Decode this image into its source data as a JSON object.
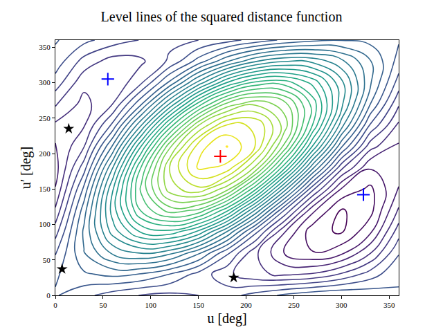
{
  "chart_data": {
    "type": "contour",
    "title": "Level lines of the squared distance function",
    "xlabel": "u [deg]",
    "ylabel": "u′ [deg]",
    "xlim": [
      0,
      360
    ],
    "ylim": [
      0,
      360
    ],
    "xticks": [
      0,
      50,
      100,
      150,
      200,
      250,
      300,
      350
    ],
    "yticks": [
      0,
      50,
      100,
      150,
      200,
      250,
      300,
      350
    ],
    "grid": false,
    "color": "viridis",
    "x": [
      0,
      30,
      60,
      90,
      120,
      150,
      180,
      210,
      240,
      270,
      300,
      330,
      360
    ],
    "y": [
      0,
      30,
      60,
      90,
      120,
      150,
      180,
      210,
      240,
      270,
      300,
      330,
      360
    ],
    "z": [
      [
        1.82,
        1.66,
        1.5,
        1.39,
        1.35,
        1.4,
        1.52,
        1.68,
        1.84,
        1.95,
        1.99,
        1.94,
        1.82
      ],
      [
        1.77,
        1.97,
        2.06,
        1.99,
        1.8,
        1.53,
        1.25,
        1.04,
        0.96,
        1.02,
        1.22,
        1.49,
        1.77
      ],
      [
        1.58,
        2.19,
        2.64,
        2.82,
        2.67,
        2.25,
        1.65,
        1.04,
        0.59,
        0.41,
        0.55,
        0.98,
        1.58
      ],
      [
        1.31,
        2.24,
        3.09,
        3.64,
        3.74,
        3.36,
        2.6,
        1.67,
        0.82,
        0.27,
        0.17,
        0.55,
        1.31
      ],
      [
        1.03,
        2.11,
        3.29,
        4.23,
        4.7,
        4.56,
        3.86,
        2.77,
        1.6,
        0.65,
        0.18,
        0.32,
        1.03
      ],
      [
        0.81,
        1.85,
        3.18,
        4.45,
        5.31,
        5.55,
        5.08,
        4.04,
        2.71,
        1.45,
        0.58,
        0.35,
        0.81
      ],
      [
        0.72,
        1.51,
        2.79,
        4.22,
        5.41,
        6.04,
        5.94,
        5.15,
        3.87,
        2.44,
        1.25,
        0.62,
        0.72
      ],
      [
        0.77,
        1.19,
        2.23,
        3.61,
        4.96,
        5.91,
        6.21,
        5.79,
        4.75,
        3.37,
        2.03,
        1.08,
        0.77
      ],
      [
        0.96,
        0.98,
        1.65,
        2.79,
        4.08,
        5.19,
        5.82,
        5.79,
        5.12,
        3.99,
        2.69,
        1.58,
        0.96
      ],
      [
        1.23,
        0.93,
        1.2,
        1.97,
        3.02,
        4.08,
        4.86,
        5.16,
        4.89,
        4.12,
        3.07,
        2.01,
        1.23
      ],
      [
        1.51,
        1.06,
        1.01,
        1.37,
        2.05,
        2.87,
        3.61,
        4.06,
        4.11,
        3.74,
        3.06,
        2.24,
        1.51
      ],
      [
        1.72,
        1.32,
        1.11,
        1.16,
        1.44,
        1.89,
        2.38,
        2.79,
        2.99,
        2.95,
        2.66,
        2.22,
        1.72
      ],
      [
        1.82,
        1.66,
        1.5,
        1.39,
        1.35,
        1.4,
        1.52,
        1.68,
        1.84,
        1.95,
        1.99,
        1.94,
        1.82
      ]
    ],
    "series": [
      {
        "color": "red",
        "marker": "plus",
        "x": [
          173
        ],
        "y": [
          196
        ]
      },
      {
        "color": "blue",
        "marker": "plus",
        "x": [
          55,
          323
        ],
        "y": [
          305,
          142
        ]
      },
      {
        "color": "black",
        "marker": "star",
        "x": [
          14,
          7,
          187
        ],
        "y": [
          235,
          37,
          25
        ]
      }
    ]
  }
}
